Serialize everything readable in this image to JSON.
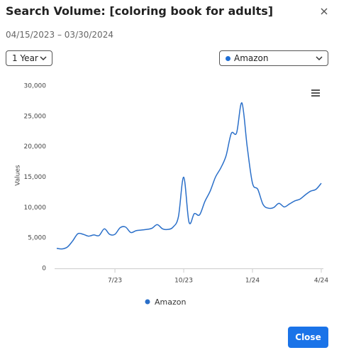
{
  "header": {
    "title": "Search Volume: [coloring book for adults]",
    "date_range": "04/15/2023 – 03/30/2024"
  },
  "controls": {
    "period": "1 Year",
    "source": "Amazon"
  },
  "chart_data": {
    "type": "line",
    "y_label": "Values",
    "categories": [
      null,
      null,
      null,
      null,
      null,
      null,
      null,
      null,
      null,
      null,
      null,
      "7/23",
      null,
      null,
      null,
      null,
      null,
      null,
      null,
      null,
      null,
      null,
      null,
      null,
      "10/23",
      null,
      null,
      null,
      null,
      null,
      null,
      null,
      null,
      null,
      null,
      null,
      null,
      "1/24",
      null,
      null,
      null,
      null,
      null,
      null,
      null,
      null,
      null,
      null,
      null,
      null,
      "4/24"
    ],
    "series": [
      {
        "name": "Amazon",
        "color": "#2a6fc9",
        "values": [
          3300,
          3200,
          3500,
          4500,
          5700,
          5600,
          5300,
          5500,
          5400,
          6500,
          5600,
          5600,
          6700,
          6800,
          5900,
          6200,
          6300,
          6400,
          6600,
          7200,
          6500,
          6400,
          6800,
          8500,
          15000,
          7600,
          9000,
          8800,
          11000,
          12700,
          15000,
          16500,
          18500,
          22200,
          22300,
          27200,
          20000,
          14000,
          13000,
          10500,
          9900,
          10000,
          10700,
          10100,
          10600,
          11100,
          11400,
          12100,
          12700,
          13000,
          14000
        ]
      }
    ],
    "ylim": [
      0,
      30000
    ],
    "yticks": [
      0,
      {
        "value": 5000,
        "label": "5,000"
      },
      {
        "value": 10000,
        "label": "10,000"
      },
      {
        "value": 15000,
        "label": "15,000"
      },
      {
        "value": 20000,
        "label": "20,000"
      },
      {
        "value": 25000,
        "label": "25,000"
      },
      {
        "value": 30000,
        "label": "30,000"
      }
    ],
    "grid": false
  },
  "footer": {
    "close": "Close"
  }
}
